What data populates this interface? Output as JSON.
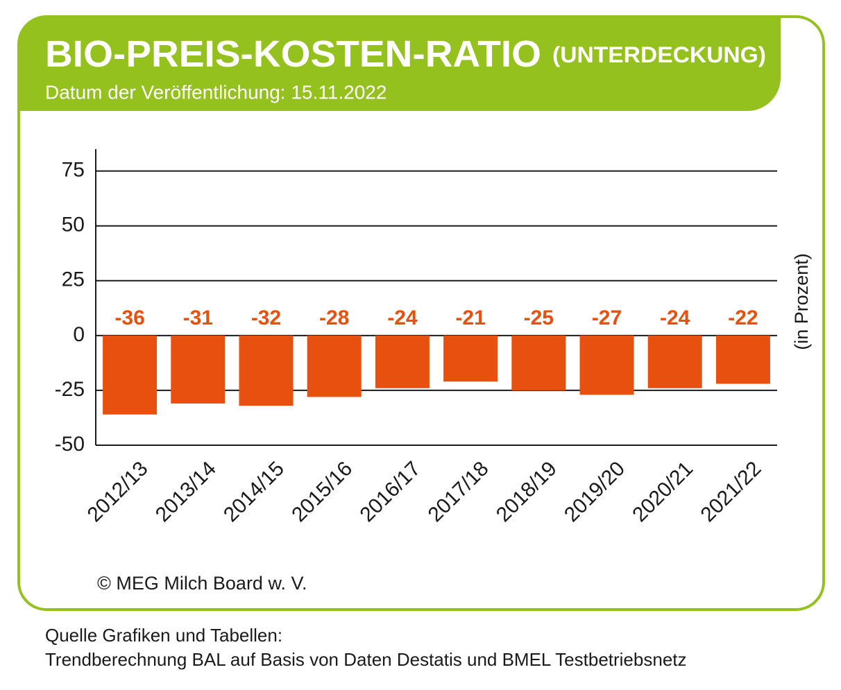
{
  "chart_data": {
    "type": "bar",
    "title": "BIO-PREIS-KOSTEN-RATIO",
    "title_note": "(UNTERDECKUNG)",
    "subtitle": "Datum der Veröffentlichung: 15.11.2022",
    "ylabel": "(in Prozent)",
    "footer_text": "© MEG Milch Board w. V.",
    "source": [
      "Quelle Grafiken und Tabellen:",
      "Trendberechnung BAL auf Basis von Daten Destatis und BMEL Testbetriebsnetz"
    ],
    "categories": [
      "2012/13",
      "2013/14",
      "2014/15",
      "2015/16",
      "2016/17",
      "2017/18",
      "2018/19",
      "2019/20",
      "2020/21",
      "2021/22"
    ],
    "values": [
      -36,
      -31,
      -32,
      -28,
      -24,
      -21,
      -25,
      -27,
      -24,
      -22
    ],
    "color": "#e8500f",
    "ylim": [
      -50,
      85
    ],
    "yticks": [
      -50,
      -25,
      0,
      25,
      50,
      75
    ],
    "grid": true
  }
}
